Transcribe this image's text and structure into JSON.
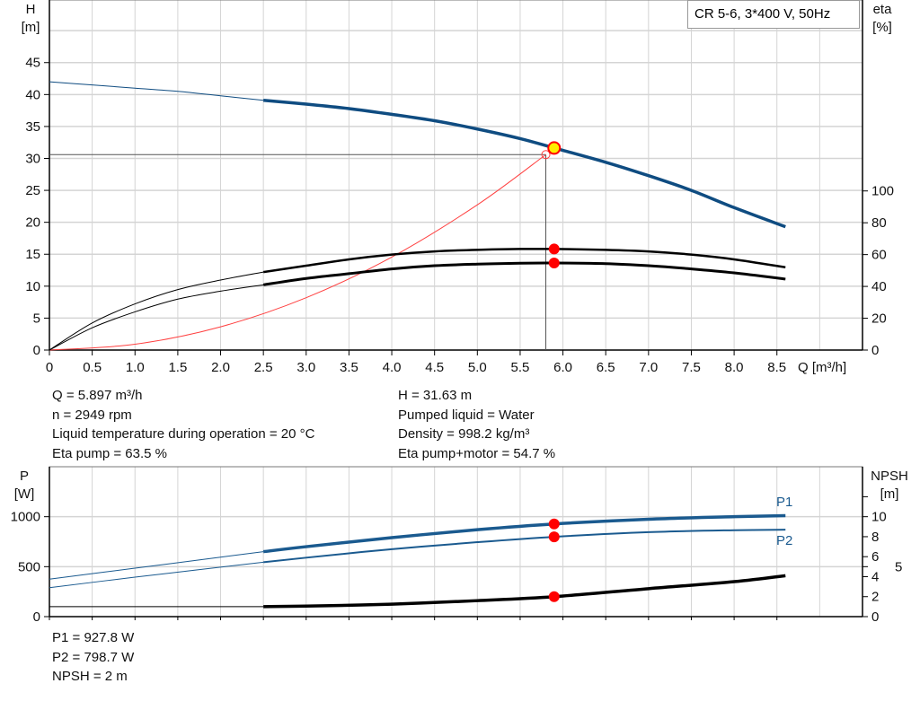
{
  "title": "CR 5-6, 3*400 V, 50Hz",
  "info_top_left": [
    "Q = 5.897 m³/h",
    "n = 2949 rpm",
    "Liquid temperature during operation = 20 °C",
    "Eta pump = 63.5 %"
  ],
  "info_top_right": [
    "H = 31.63 m",
    "Pumped liquid = Water",
    "Density = 998.2 kg/m³",
    "Eta pump+motor = 54.7 %"
  ],
  "info_bottom": [
    "P1 = 927.8 W",
    "P2 = 798.7 W",
    "NPSH = 2 m"
  ],
  "colors": {
    "head": "#0f4c81",
    "power": "#1a5a8f",
    "efficiency": "#000000",
    "system": "#ff4040",
    "point": "#ff0000",
    "duty_fill": "#ffee00",
    "grid": "#d4d4d4"
  },
  "chart_data": [
    {
      "type": "line",
      "xlabel": "Q [m³/h]",
      "ylabel": "H\n[m]",
      "y2label": "eta\n[%]",
      "xlim": [
        0,
        9.5
      ],
      "ylim": [
        0,
        54.8
      ],
      "y2lim": [
        0,
        220
      ],
      "grid": true,
      "xticks": [
        "0",
        "0.5",
        "1.0",
        "1.5",
        "2.0",
        "2.5",
        "3.0",
        "3.5",
        "4.0",
        "4.5",
        "5.0",
        "5.5",
        "6.0",
        "6.5",
        "7.0",
        "7.5",
        "8.0",
        "8.5"
      ],
      "yticks": [
        "0",
        "5",
        "10",
        "15",
        "20",
        "25",
        "30",
        "35",
        "40",
        "45"
      ],
      "y2ticks": [
        "0",
        "20",
        "40",
        "60",
        "80",
        "100"
      ],
      "series": [
        {
          "axis": "left",
          "x": [
            0,
            0.5,
            1,
            1.5,
            2,
            2.5,
            3,
            3.5,
            4,
            4.5,
            5,
            5.5,
            5.9,
            6.5,
            7,
            7.5,
            8,
            8.6
          ],
          "y": [
            42,
            41.5,
            41,
            40.5,
            39.8,
            39.1,
            38.5,
            37.8,
            36.9,
            35.9,
            34.6,
            33.1,
            31.63,
            29.4,
            27.3,
            25,
            22.3,
            19.3
          ]
        },
        {
          "axis": "right",
          "x": [
            0,
            0.5,
            1,
            1.5,
            2,
            2.5,
            3,
            3.5,
            4,
            4.5,
            5,
            5.5,
            5.9,
            6.5,
            7,
            7.5,
            8,
            8.6
          ],
          "y": [
            0,
            17,
            29,
            38,
            44,
            49,
            53,
            57,
            60,
            62,
            63,
            63.5,
            63.5,
            63,
            62,
            60,
            57,
            52
          ]
        },
        {
          "axis": "right",
          "x": [
            0,
            0.5,
            1,
            1.5,
            2,
            2.5,
            3,
            3.5,
            4,
            4.5,
            5,
            5.5,
            5.9,
            6.5,
            7,
            7.5,
            8,
            8.6
          ],
          "y": [
            0,
            14,
            24,
            32,
            37,
            41,
            45,
            48,
            51,
            53,
            54,
            54.6,
            54.7,
            54.3,
            53,
            51,
            48.5,
            44.6
          ]
        },
        {
          "axis": "left",
          "kind": "system",
          "x": [
            0,
            1,
            2,
            3,
            4,
            5,
            5.8
          ],
          "y": [
            0,
            0.91,
            3.64,
            8.19,
            14.55,
            22.74,
            30.6
          ]
        }
      ],
      "duty_point": {
        "Q": 5.897,
        "H": 31.63,
        "eta_pump": 63.5,
        "eta_total": 54.7
      },
      "requested_point": {
        "Q": 5.8,
        "H": 30.6
      }
    },
    {
      "type": "line",
      "ylabel": "P\n[W]",
      "y2label": "NPSH\n[m]",
      "xlim": [
        0,
        9.5
      ],
      "ylim": [
        0,
        1500
      ],
      "y2lim": [
        0,
        15
      ],
      "grid": true,
      "yticks": [
        "0",
        "500",
        "1000"
      ],
      "y2ticks": [
        "0",
        "2",
        "4",
        "5",
        "6",
        "8",
        "10"
      ],
      "series": [
        {
          "name": "P1",
          "axis": "left",
          "x": [
            0,
            1,
            2,
            2.5,
            3,
            4,
            5,
            5.9,
            7,
            8,
            8.6
          ],
          "y": [
            375,
            485,
            595,
            650,
            700,
            790,
            870,
            927.8,
            975,
            1000,
            1010
          ]
        },
        {
          "name": "P2",
          "axis": "left",
          "x": [
            0,
            1,
            2,
            2.5,
            3,
            4,
            5,
            5.9,
            7,
            8,
            8.6
          ],
          "y": [
            290,
            395,
            495,
            545,
            590,
            675,
            745,
            798.7,
            845,
            865,
            870
          ]
        },
        {
          "axis": "right",
          "x": [
            0,
            2.5,
            3,
            4,
            5,
            5.9,
            7,
            8,
            8.6
          ],
          "y": [
            1,
            1,
            1.05,
            1.25,
            1.6,
            2,
            2.8,
            3.5,
            4.1
          ]
        }
      ],
      "duty_point": {
        "Q": 5.897,
        "P1": 927.8,
        "P2": 798.7,
        "NPSH": 2
      }
    }
  ]
}
